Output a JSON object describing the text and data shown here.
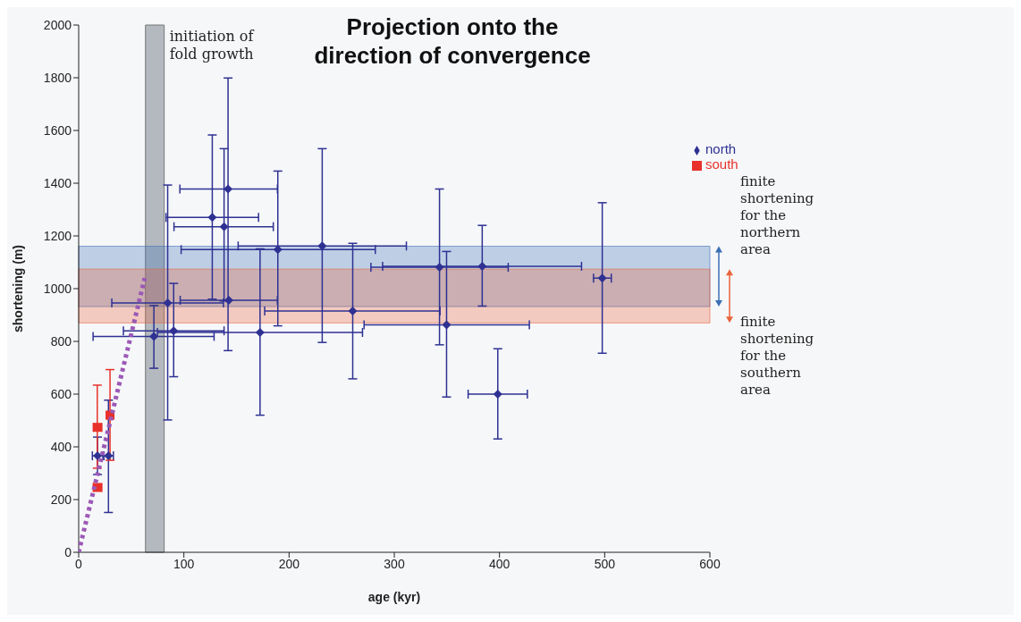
{
  "chart_data": {
    "type": "scatter",
    "title": "Projection onto the direction of convergence",
    "xlabel": "age (kyr)",
    "ylabel": "shortening (m)",
    "xlim": [
      0,
      600
    ],
    "xticks": [
      0,
      100,
      200,
      300,
      400,
      500,
      600
    ],
    "ylim": [
      0,
      2000
    ],
    "yticks": [
      0,
      200,
      400,
      600,
      800,
      1000,
      1200,
      1400,
      1600,
      1800,
      2000
    ],
    "grid": false,
    "legend": "top right",
    "series": [
      {
        "name": "north",
        "color": "#2e3192",
        "marker": "diamond",
        "x": [
          17.9,
          28.3,
          71.5,
          84.6,
          90.3,
          127,
          138.2,
          142,
          142.7,
          172.4,
          189.3,
          231.5,
          260.5,
          343,
          383.6,
          349.7,
          398.4,
          497.7
        ],
        "values": [
          366,
          366,
          819,
          946,
          840,
          1270,
          1235,
          1378,
          956,
          834,
          1148,
          1162,
          915,
          1081,
          1085,
          863,
          600,
          1040
        ],
        "errors": [
          [
            295,
            437
          ],
          [
            151,
            577
          ],
          [
            698,
            936
          ],
          [
            502,
            1393
          ],
          [
            666,
            1020
          ],
          [
            960,
            1583
          ],
          [
            953,
            1531
          ],
          [
            765,
            1799
          ],
          null,
          [
            520,
            1151
          ],
          [
            859,
            1446
          ],
          [
            796,
            1531
          ],
          [
            658,
            1172
          ],
          [
            787,
            1378
          ],
          [
            934,
            1240
          ],
          [
            589,
            1141
          ],
          [
            430,
            772
          ],
          [
            755,
            1326
          ]
        ],
        "xerrors": [
          [
            13,
            23
          ],
          [
            24,
            33
          ],
          [
            13.7,
            128.7
          ],
          [
            31.5,
            137.6
          ],
          [
            42.5,
            138.2
          ],
          [
            83,
            171
          ],
          [
            90.6,
            185
          ],
          [
            96.2,
            188.9
          ],
          [
            96.5,
            188.9
          ],
          [
            74.9,
            269.8
          ],
          [
            97.4,
            282
          ],
          [
            151.6,
            311.5
          ],
          [
            176.8,
            343.5
          ],
          [
            277.8,
            408.3
          ],
          [
            288.9,
            478
          ],
          [
            271.3,
            428.4
          ],
          [
            370.2,
            426.5
          ],
          [
            489.4,
            506.3
          ]
        ]
      },
      {
        "name": "south",
        "color": "#e8312a",
        "marker": "square",
        "x": [
          17.7,
          29.8,
          17.7
        ],
        "values": [
          474,
          520,
          246
        ],
        "errors": [
          [
            319,
            634
          ],
          [
            349,
            693
          ],
          null
        ],
        "xerrors": [
          [
            14,
            22
          ],
          [
            27,
            33
          ],
          [
            14,
            22
          ]
        ]
      },
      {
        "type": "line",
        "color": "#9b59b6",
        "line_style": "dotted",
        "marker": "none",
        "x": [
          0,
          62.8
        ],
        "values": [
          0,
          1040
        ]
      }
    ],
    "bands": [
      {
        "axis": "x",
        "from": 63.5,
        "to": 81.3,
        "label": "initiation of fold growth",
        "color": "#9ea4ab"
      },
      {
        "axis": "y",
        "from": 932,
        "to": 1161,
        "label": "finite shortening for the northern area",
        "color": "#3a6fb5"
      },
      {
        "axis": "y",
        "from": 870,
        "to": 1074,
        "label": "finite shortening for the southern area",
        "color": "#e8643c"
      }
    ]
  }
}
